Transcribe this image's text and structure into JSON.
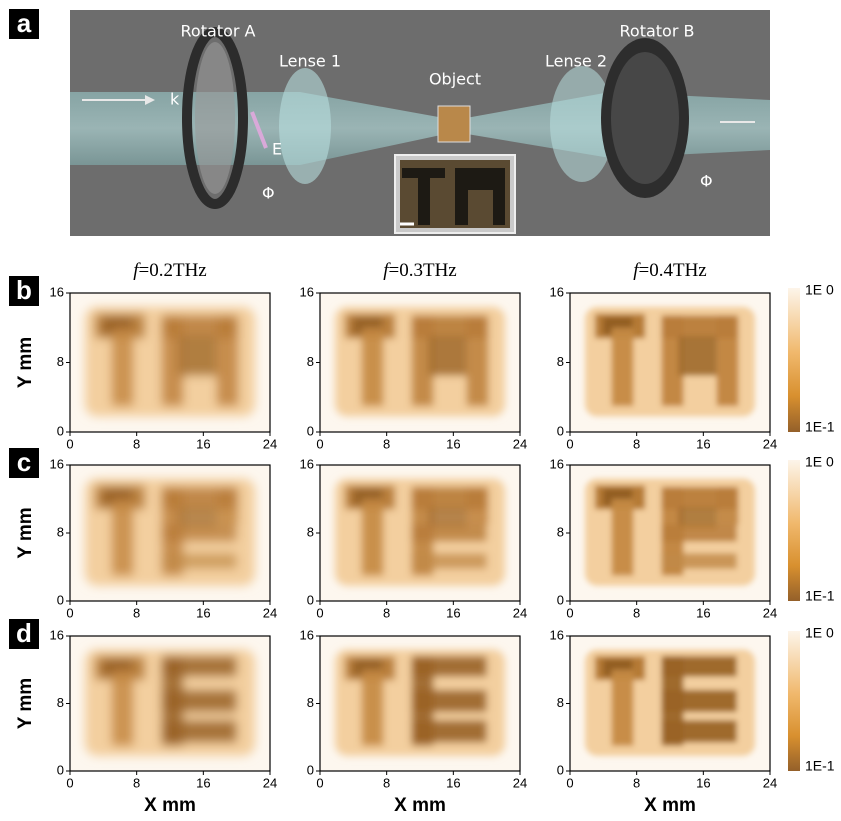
{
  "panel_a": {
    "label": "a",
    "rotator_a": "Rotator A",
    "lense_1": "Lense 1",
    "object": "Object",
    "lense_2": "Lense 2",
    "rotator_b": "Rotator B",
    "wave_vector": "k",
    "field": "E",
    "angle_a": "Φ",
    "angle_b": "Φ"
  },
  "heatmaps": {
    "columns": [
      {
        "symbol": "f",
        "title": "=0.2THz"
      },
      {
        "symbol": "f",
        "title": "=0.3THz"
      },
      {
        "symbol": "f",
        "title": "=0.4THz"
      }
    ],
    "rows": [
      {
        "label": "b"
      },
      {
        "label": "c"
      },
      {
        "label": "d"
      }
    ],
    "y_label": "Y mm",
    "x_label": "X mm",
    "xlim": [
      0,
      24
    ],
    "ylim": [
      0,
      16
    ],
    "xticks": [
      0,
      8,
      16,
      24
    ],
    "yticks": [
      0,
      8,
      16
    ],
    "colorbar": {
      "max": "1E 0",
      "min": "1E-1"
    }
  }
}
